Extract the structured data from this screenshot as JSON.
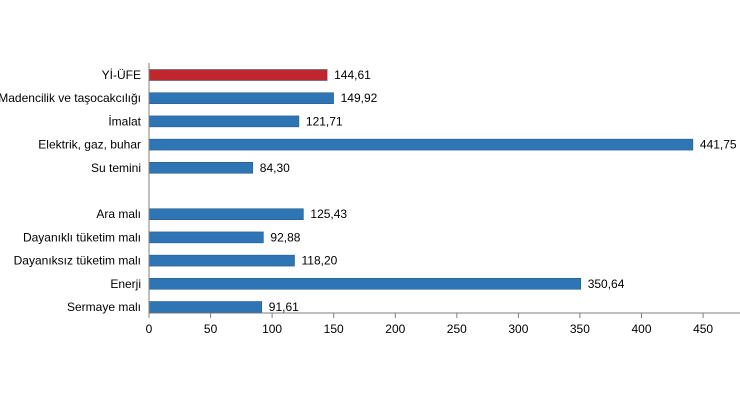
{
  "chart_data": {
    "type": "bar",
    "orientation": "horizontal",
    "categories": [
      "Yİ-ÜFE",
      "Madencilik ve taşocakcılığı",
      "İmalat",
      "Elektrik, gaz, buhar",
      "Su temini",
      "",
      "Ara malı",
      "Dayanıklı tüketim malı",
      "Dayanıksız tüketim malı",
      "Enerji",
      "Sermaye malı"
    ],
    "values": [
      144.61,
      149.92,
      121.71,
      441.75,
      84.3,
      null,
      125.43,
      92.88,
      118.2,
      350.64,
      91.61
    ],
    "value_labels": [
      "144,61",
      "149,92",
      "121,71",
      "441,75",
      "84,30",
      "",
      "125,43",
      "92,88",
      "118,20",
      "350,64",
      "91,61"
    ],
    "highlight_index": 0,
    "xlim": [
      0,
      480
    ],
    "xticks": [
      0,
      50,
      100,
      150,
      200,
      250,
      300,
      350,
      400,
      450
    ],
    "grid": false,
    "title": "",
    "xlabel": "",
    "ylabel": "",
    "colors": {
      "bar": "#2e75b6",
      "highlight": "#c0272d",
      "axis": "#7f7f7f"
    }
  }
}
